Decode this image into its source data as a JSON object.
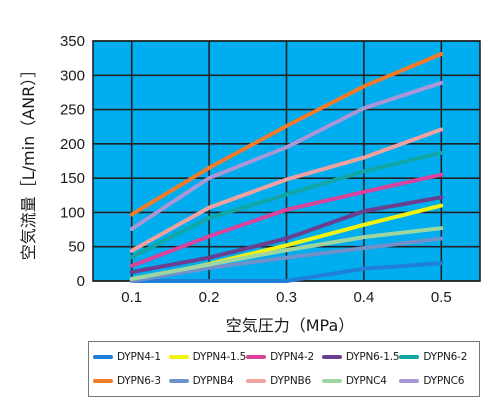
{
  "chart_data": {
    "type": "line",
    "xlabel": "空気圧力（MPa）",
    "ylabel": "空気流量［L/min（ANR）］",
    "xlim": [
      0.05,
      0.55
    ],
    "ylim": [
      0,
      350
    ],
    "xticks": [
      "0.1",
      "0.2",
      "0.3",
      "0.4",
      "0.5"
    ],
    "yticks": [
      "0",
      "50",
      "100",
      "150",
      "200",
      "250",
      "300",
      "350"
    ],
    "grid": true,
    "x": [
      0.1,
      0.2,
      0.3,
      0.4,
      0.5
    ],
    "series": [
      {
        "name": "DYPN4-1",
        "color": "#1f7fd6",
        "values": [
          0,
          0,
          0,
          18,
          26
        ]
      },
      {
        "name": "DYPN4-1.5",
        "color": "#f2f20f",
        "values": [
          0,
          25,
          52,
          82,
          110
        ]
      },
      {
        "name": "DYPN4-2",
        "color": "#d9439c",
        "values": [
          22,
          65,
          104,
          130,
          155
        ]
      },
      {
        "name": "DYPN6-1.5",
        "color": "#6b3f8e",
        "values": [
          13,
          34,
          62,
          102,
          122
        ]
      },
      {
        "name": "DYPN6-2",
        "color": "#11a6a6",
        "values": [
          35,
          92,
          126,
          160,
          187
        ]
      },
      {
        "name": "DYPN6-3",
        "color": "#f07c2b",
        "values": [
          97,
          165,
          226,
          284,
          331
        ]
      },
      {
        "name": "DYPNB4",
        "color": "#6f92cc",
        "values": [
          0,
          19,
          34,
          48,
          62
        ]
      },
      {
        "name": "DYPNB6",
        "color": "#f2a1a1",
        "values": [
          44,
          107,
          148,
          180,
          221
        ]
      },
      {
        "name": "DYPNC4",
        "color": "#9fd69f",
        "values": [
          3,
          24,
          45,
          64,
          77
        ]
      },
      {
        "name": "DYPNC6",
        "color": "#a896d6",
        "values": [
          76,
          150,
          195,
          252,
          289
        ]
      }
    ]
  }
}
